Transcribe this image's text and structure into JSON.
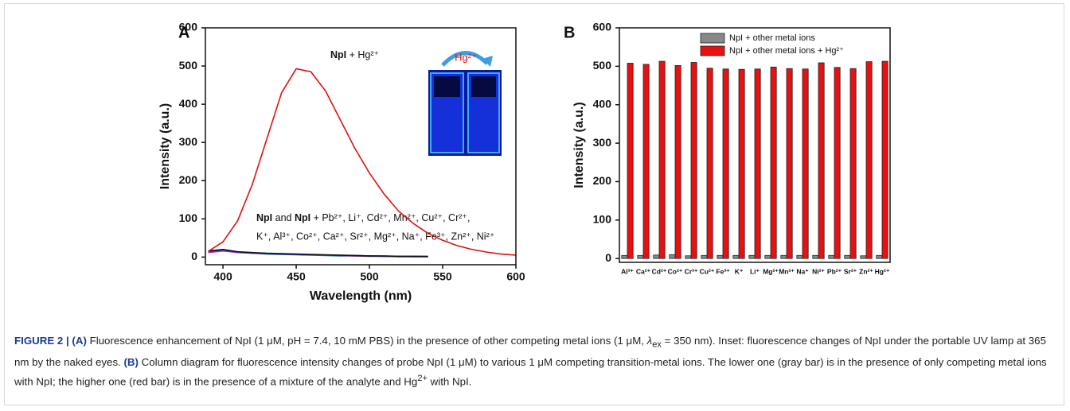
{
  "panels": [
    "A",
    "B"
  ],
  "inset_label": "Hg²⁺",
  "annotations": [
    [
      "NpI",
      " + Hg²⁺"
    ],
    [
      "NpI",
      " and ",
      "NpI",
      " + Pb²⁺, Li⁺, Cd²⁺, Mn²⁺, Cu²⁺, Cr²⁺,"
    ],
    "K⁺, Al³⁺, Co²⁺, Ca²⁺, Sr²⁺, Mg²⁺, Na⁺, Fe³⁺, Zn²⁺, Ni²⁺"
  ],
  "chart_data": [
    {
      "type": "line",
      "x_label": "Wavelength (nm)",
      "y_label": "Intensity (a.u.)",
      "x": [
        390,
        400,
        410,
        420,
        430,
        440,
        450,
        460,
        470,
        480,
        490,
        500,
        510,
        520,
        530,
        540,
        550,
        560,
        570,
        580,
        590,
        600
      ],
      "series": [
        {
          "color": "#e01010",
          "values": [
            15,
            40,
            95,
            190,
            310,
            430,
            493,
            485,
            435,
            360,
            285,
            220,
            165,
            120,
            88,
            62,
            44,
            30,
            20,
            13,
            8,
            5
          ]
        },
        {
          "color": "#111111",
          "values": [
            16,
            20,
            14,
            12,
            10,
            9,
            8,
            7,
            6,
            5,
            4,
            3,
            3,
            2,
            2,
            2,
            null,
            null,
            null,
            null,
            null,
            null
          ]
        },
        {
          "color": "#3040e0",
          "values": [
            14,
            18,
            13,
            11,
            9,
            8,
            7,
            6,
            5,
            4,
            4,
            3,
            2,
            2,
            2,
            1,
            null,
            null,
            null,
            null,
            null,
            null
          ]
        },
        {
          "color": "#c020c0",
          "values": [
            12,
            16,
            12,
            10,
            9,
            8,
            7,
            6,
            5,
            4,
            3,
            3,
            2,
            2,
            1,
            1,
            null,
            null,
            null,
            null,
            null,
            null
          ]
        },
        {
          "color": "#208080",
          "values": [
            13,
            17,
            12,
            10,
            8,
            7,
            6,
            5,
            4,
            3,
            3,
            2,
            2,
            1,
            1,
            1,
            null,
            null,
            null,
            null,
            null,
            null
          ]
        }
      ],
      "xlim": [
        388,
        600
      ],
      "xticks": [
        400,
        450,
        500,
        550,
        600
      ],
      "ylim": [
        -20,
        600
      ],
      "yticks": [
        0,
        100,
        200,
        300,
        400,
        500,
        600
      ]
    },
    {
      "type": "bar",
      "y_label": "Intensity (a.u.)",
      "categories": [
        "Al³⁺",
        "Ca²⁺",
        "Cd²⁺",
        "Co²⁺",
        "Cr³⁺",
        "Cu²⁺",
        "Fe³⁺",
        "K⁺",
        "Li⁺",
        "Mg²⁺",
        "Mn²⁺",
        "Na⁺",
        "Ni²⁺",
        "Pb²⁺",
        "Sr²⁺",
        "Zn²⁺",
        "Hg²⁺"
      ],
      "series": [
        {
          "name": "NpI + other metal ions",
          "color": "#888888",
          "values": [
            8,
            8,
            9,
            10,
            7,
            8,
            8,
            8,
            8,
            8,
            8,
            8,
            8,
            8,
            8,
            7,
            8
          ]
        },
        {
          "name": "NpI + other metal ions + Hg²⁺",
          "color": "#e81010",
          "values": [
            508,
            505,
            513,
            502,
            510,
            495,
            493,
            492,
            493,
            498,
            494,
            493,
            509,
            497,
            494,
            512,
            513
          ]
        }
      ],
      "ylim": [
        -10,
        600
      ],
      "yticks": [
        0,
        100,
        200,
        300,
        400,
        500,
        600
      ],
      "legend": "top"
    }
  ],
  "caption": {
    "label": "FIGURE 2 | (A)",
    "t1": " Fluorescence enhancement of NpI (1 μM, pH = 7.4, 10 mM PBS) in the presence of other competing metal ions (1 μM, ",
    "lambda": "λ",
    "sub": "ex",
    "t2": " = 350 nm). Inset: fluorescence changes of NpI under the portable UV lamp at 365 nm by the naked eyes. ",
    "label_b": "(B)",
    "t3": " Column diagram for fluorescence intensity changes of probe NpI (1 μM) to various 1 μM competing transition-metal ions. The lower one (gray bar) is in the presence of only competing metal ions with NpI; the higher one (red bar) is in the presence of a mixture of the analyte and Hg",
    "sup": "2+",
    "t4": " with NpI."
  }
}
